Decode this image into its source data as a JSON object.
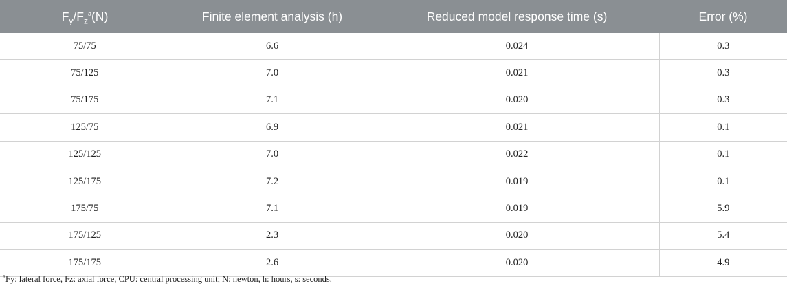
{
  "table": {
    "headers": {
      "col1": {
        "f1": "F",
        "s1": "y",
        "slash": "/F",
        "s2": "z",
        "sup": "a",
        "unit": "(N)"
      },
      "col2": "Finite element analysis (h)",
      "col3": "Reduced model response time (s)",
      "col4": "Error (%)"
    },
    "rows": [
      [
        "75/75",
        "6.6",
        "0.024",
        "0.3"
      ],
      [
        "75/125",
        "7.0",
        "0.021",
        "0.3"
      ],
      [
        "75/175",
        "7.1",
        "0.020",
        "0.3"
      ],
      [
        "125/75",
        "6.9",
        "0.021",
        "0.1"
      ],
      [
        "125/125",
        "7.0",
        "0.022",
        "0.1"
      ],
      [
        "125/175",
        "7.2",
        "0.019",
        "0.1"
      ],
      [
        "175/75",
        "7.1",
        "0.019",
        "5.9"
      ],
      [
        "175/125",
        "2.3",
        "0.020",
        "5.4"
      ],
      [
        "175/175",
        "2.6",
        "0.020",
        "4.9"
      ]
    ]
  },
  "footnote": {
    "marker": "a",
    "text": "Fy: lateral force, Fz: axial force, CPU: central processing unit; N: newton, h: hours, s: seconds."
  }
}
